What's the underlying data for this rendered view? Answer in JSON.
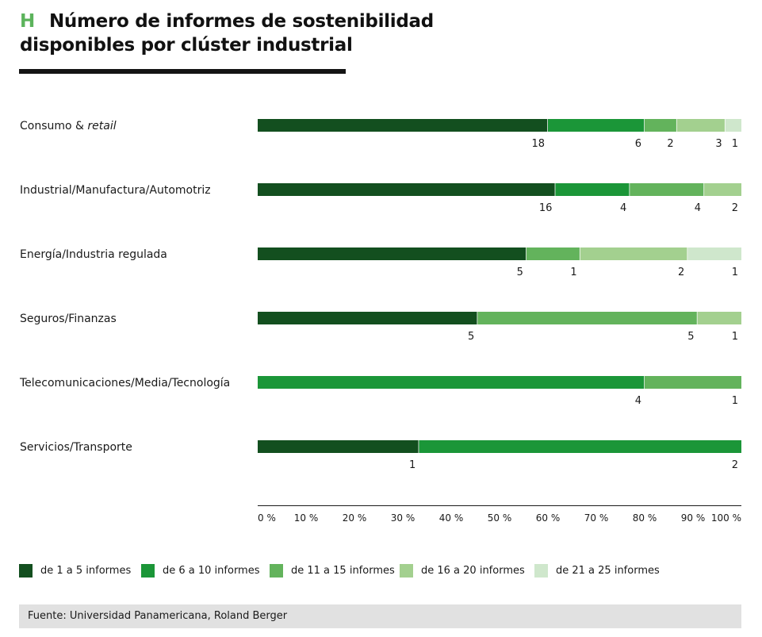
{
  "header": {
    "letter": "H",
    "title_line1": "Número de informes de sostenibilidad",
    "title_line2": "disponibles por clúster industrial"
  },
  "legend": [
    {
      "label": "de 1 a 5 informes",
      "color": "#134f1f"
    },
    {
      "label": "de 6 a 10 informes",
      "color": "#1b9638"
    },
    {
      "label": "de 11 a 15 informes",
      "color": "#63b35c"
    },
    {
      "label": "de 16 a 20 informes",
      "color": "#a3d08f"
    },
    {
      "label": "de 21 a 25 informes",
      "color": "#cfe7cc"
    }
  ],
  "source": "Fuente: Universidad Panamericana, Roland Berger",
  "chart_data": {
    "type": "bar",
    "orientation": "horizontal",
    "stacked": "percent",
    "xlim": [
      0,
      100
    ],
    "x_ticks": [
      "0 %",
      "10 %",
      "20 %",
      "30 %",
      "40 %",
      "50 %",
      "60 %",
      "70 %",
      "80 %",
      "90 %",
      "100 %"
    ],
    "categories": [
      {
        "label": "Consumo & ",
        "label_italic": "retail"
      },
      {
        "label": "Industrial/Manufactura/Automotriz",
        "label_italic": ""
      },
      {
        "label": "Energía/Industria regulada",
        "label_italic": ""
      },
      {
        "label": "Seguros/Finanzas",
        "label_italic": ""
      },
      {
        "label": "Telecomunicaciones/Media/Tecnología",
        "label_italic": ""
      },
      {
        "label": "Servicios/Transporte",
        "label_italic": ""
      }
    ],
    "series": [
      {
        "name": "de 1 a 5 informes",
        "values": [
          18,
          16,
          5,
          5,
          0,
          1
        ]
      },
      {
        "name": "de 6 a 10 informes",
        "values": [
          6,
          4,
          0,
          0,
          4,
          2
        ]
      },
      {
        "name": "de 11 a 15 informes",
        "values": [
          2,
          4,
          1,
          5,
          1,
          0
        ]
      },
      {
        "name": "de 16 a 20 informes",
        "values": [
          3,
          2,
          2,
          1,
          0,
          0
        ]
      },
      {
        "name": "de 21 a 25 informes",
        "values": [
          1,
          0,
          1,
          0,
          0,
          0
        ]
      }
    ]
  }
}
